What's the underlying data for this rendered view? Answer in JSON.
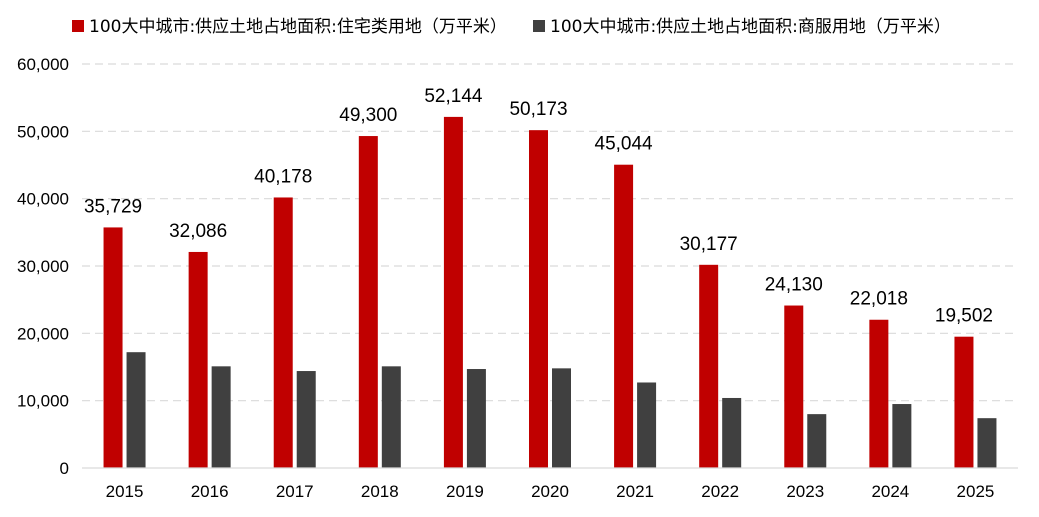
{
  "chart_data": {
    "type": "bar",
    "categories": [
      "2015",
      "2016",
      "2017",
      "2018",
      "2019",
      "2020",
      "2021",
      "2022",
      "2023",
      "2024",
      "2025"
    ],
    "series": [
      {
        "name": "100大中城市:供应土地占地面积:住宅类用地（万平米）",
        "color": "#c00000",
        "values": [
          35729,
          32086,
          40178,
          49300,
          52144,
          50173,
          45044,
          30177,
          24130,
          22018,
          19502
        ],
        "data_labels": [
          "35,729",
          "32,086",
          "40,178",
          "49,300",
          "52,144",
          "50,173",
          "45,044",
          "30,177",
          "24,130",
          "22,018",
          "19,502"
        ]
      },
      {
        "name": "100大中城市:供应土地占地面积:商服用地（万平米）",
        "color": "#404040",
        "values": [
          17200,
          15100,
          14400,
          15100,
          14700,
          14800,
          12700,
          10400,
          8000,
          9500,
          7400
        ]
      }
    ],
    "y_ticks": [
      0,
      10000,
      20000,
      30000,
      40000,
      50000,
      60000
    ],
    "y_tick_labels": [
      "0",
      "10,000",
      "20,000",
      "30,000",
      "40,000",
      "50,000",
      "60,000"
    ],
    "ylim": [
      0,
      60000
    ],
    "grid": "horizontal dashed",
    "legend_position": "top",
    "title": "",
    "xlabel": "",
    "ylabel": ""
  }
}
